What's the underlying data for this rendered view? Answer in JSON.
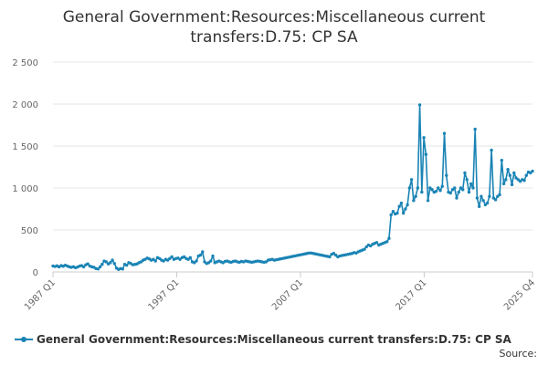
{
  "chart_data": {
    "type": "line",
    "title": "General Government:Resources:Miscellaneous current transfers:D.75: CP SA",
    "xlabel": "",
    "ylabel": "",
    "ylim": [
      0,
      2500
    ],
    "yticks": [
      0,
      500,
      1000,
      1500,
      2000,
      2500
    ],
    "ytick_labels": [
      "0",
      "500",
      "1 000",
      "1 500",
      "2 000",
      "2 500"
    ],
    "xtick_labels": [
      "1987 Q1",
      "1997 Q1",
      "2007 Q1",
      "2017 Q1",
      "2025 Q4"
    ],
    "x_start": "1987 Q1",
    "x_end": "2025 Q4",
    "grid": true,
    "legend_position": "bottom",
    "color": "#1a84b5",
    "series": [
      {
        "name": "General Government:Resources:Miscellaneous current transfers:D.75: CP SA",
        "values": [
          70,
          65,
          72,
          60,
          75,
          68,
          80,
          70,
          60,
          55,
          62,
          50,
          58,
          70,
          75,
          60,
          85,
          95,
          70,
          60,
          55,
          40,
          35,
          60,
          90,
          130,
          120,
          95,
          110,
          140,
          100,
          45,
          30,
          40,
          35,
          90,
          80,
          110,
          100,
          85,
          90,
          95,
          110,
          120,
          140,
          150,
          165,
          155,
          140,
          150,
          130,
          170,
          160,
          140,
          130,
          150,
          140,
          160,
          180,
          150,
          160,
          165,
          150,
          170,
          180,
          160,
          150,
          170,
          120,
          110,
          130,
          190,
          200,
          240,
          120,
          100,
          110,
          130,
          190,
          110,
          120,
          130,
          120,
          110,
          125,
          130,
          120,
          115,
          125,
          130,
          120,
          115,
          125,
          120,
          130,
          125,
          120,
          115,
          120,
          125,
          130,
          125,
          120,
          115,
          120,
          140,
          145,
          150,
          140,
          145,
          150,
          155,
          160,
          165,
          170,
          175,
          180,
          185,
          190,
          195,
          200,
          205,
          210,
          215,
          220,
          225,
          225,
          220,
          215,
          210,
          205,
          200,
          195,
          190,
          185,
          180,
          210,
          220,
          200,
          180,
          190,
          195,
          200,
          205,
          210,
          215,
          220,
          230,
          225,
          240,
          250,
          260,
          270,
          300,
          320,
          310,
          330,
          340,
          350,
          320,
          330,
          340,
          350,
          360,
          400,
          680,
          720,
          690,
          700,
          780,
          820,
          700,
          750,
          800,
          1000,
          1100,
          850,
          900,
          1000,
          1990,
          950,
          1600,
          1400,
          850,
          1000,
          980,
          950,
          960,
          1000,
          970,
          1020,
          1650,
          1150,
          950,
          940,
          980,
          1000,
          880,
          950,
          1000,
          980,
          1180,
          1100,
          950,
          1050,
          1000,
          1700,
          880,
          780,
          900,
          850,
          800,
          820,
          900,
          1450,
          880,
          860,
          900,
          920,
          1330,
          1050,
          1100,
          1220,
          1150,
          1040,
          1180,
          1120,
          1100,
          1080,
          1100,
          1090,
          1150,
          1190,
          1180,
          1200
        ]
      }
    ]
  },
  "source_label": "Source:"
}
